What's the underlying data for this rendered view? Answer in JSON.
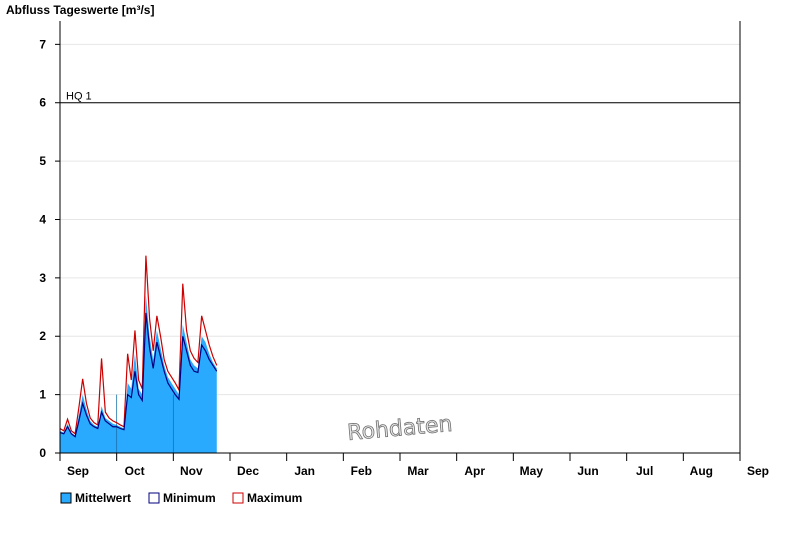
{
  "chart_data": {
    "type": "area",
    "title": "Abfluss Tageswerte [m³/s]",
    "ylim": [
      0,
      7.4
    ],
    "yticks": [
      "0",
      "1",
      "2",
      "3",
      "4",
      "5",
      "6",
      "7"
    ],
    "xticks": [
      "Sep",
      "Oct",
      "Nov",
      "Dec",
      "Jan",
      "Feb",
      "Mar",
      "Apr",
      "May",
      "Jun",
      "Jul",
      "Aug",
      "Sep"
    ],
    "grid": true,
    "reference_line": {
      "label": "HQ 1",
      "value": 6.0
    },
    "watermark": "Rohdaten",
    "legend": [
      "Mittelwert",
      "Minimum",
      "Maximum"
    ],
    "legend_position": "bottom-left",
    "colors": {
      "mean_fill": "#29aaff",
      "minimum": "#00007f",
      "maximum": "#cc0000"
    },
    "series": [
      {
        "name": "Mittelwert",
        "x": [
          "Sep 01",
          "Sep 03",
          "Sep 05",
          "Sep 07",
          "Sep 09",
          "Sep 11",
          "Sep 13",
          "Sep 15",
          "Sep 17",
          "Sep 19",
          "Sep 21",
          "Sep 23",
          "Sep 25",
          "Sep 27",
          "Sep 29",
          "Oct 01",
          "Oct 03",
          "Oct 05",
          "Oct 07",
          "Oct 09",
          "Oct 11",
          "Oct 13",
          "Oct 15",
          "Oct 17",
          "Oct 19",
          "Oct 21",
          "Oct 23",
          "Oct 25",
          "Oct 27",
          "Oct 29",
          "Oct 31",
          "Nov 02",
          "Nov 04",
          "Nov 06",
          "Nov 08",
          "Nov 10",
          "Nov 12",
          "Nov 14",
          "Nov 16",
          "Nov 18",
          "Nov 20",
          "Nov 22",
          "Nov 24",
          "Nov 26",
          "Nov 28",
          "Nov 30",
          "Dec 02",
          "Dec 04"
        ],
        "values": [
          0.38,
          0.35,
          0.5,
          0.35,
          0.3,
          0.65,
          1.0,
          0.75,
          0.55,
          0.48,
          0.45,
          0.8,
          0.6,
          0.55,
          0.5,
          0.48,
          0.45,
          0.42,
          1.2,
          1.1,
          1.7,
          1.1,
          1.0,
          2.7,
          2.0,
          1.6,
          2.1,
          1.8,
          1.5,
          1.3,
          1.2,
          1.1,
          1.0,
          2.2,
          1.9,
          1.6,
          1.5,
          1.45,
          2.0,
          1.9,
          1.7,
          1.55,
          1.45,
          0.0,
          0.0,
          0.0,
          0.0,
          0.0
        ]
      },
      {
        "name": "Minimum",
        "x": [
          "Sep 01",
          "Sep 03",
          "Sep 05",
          "Sep 07",
          "Sep 09",
          "Sep 11",
          "Sep 13",
          "Sep 15",
          "Sep 17",
          "Sep 19",
          "Sep 21",
          "Sep 23",
          "Sep 25",
          "Sep 27",
          "Sep 29",
          "Oct 01",
          "Oct 03",
          "Oct 05",
          "Oct 07",
          "Oct 09",
          "Oct 11",
          "Oct 13",
          "Oct 15",
          "Oct 17",
          "Oct 19",
          "Oct 21",
          "Oct 23",
          "Oct 25",
          "Oct 27",
          "Oct 29",
          "Oct 31",
          "Nov 02",
          "Nov 04",
          "Nov 06",
          "Nov 08",
          "Nov 10",
          "Nov 12",
          "Nov 14",
          "Nov 16",
          "Nov 18",
          "Nov 20",
          "Nov 22",
          "Nov 24"
        ],
        "values": [
          0.35,
          0.33,
          0.45,
          0.33,
          0.28,
          0.55,
          0.85,
          0.65,
          0.5,
          0.45,
          0.42,
          0.7,
          0.55,
          0.5,
          0.45,
          0.45,
          0.42,
          0.4,
          1.0,
          0.95,
          1.4,
          1.0,
          0.9,
          2.4,
          1.8,
          1.45,
          1.9,
          1.65,
          1.4,
          1.2,
          1.1,
          1.0,
          0.92,
          2.0,
          1.75,
          1.5,
          1.4,
          1.38,
          1.85,
          1.75,
          1.6,
          1.5,
          1.4
        ]
      },
      {
        "name": "Maximum",
        "x": [
          "Sep 01",
          "Sep 03",
          "Sep 05",
          "Sep 07",
          "Sep 09",
          "Sep 11",
          "Sep 13",
          "Sep 15",
          "Sep 17",
          "Sep 19",
          "Sep 21",
          "Sep 23",
          "Sep 25",
          "Sep 27",
          "Sep 29",
          "Oct 01",
          "Oct 03",
          "Oct 05",
          "Oct 07",
          "Oct 09",
          "Oct 11",
          "Oct 13",
          "Oct 15",
          "Oct 17",
          "Oct 19",
          "Oct 21",
          "Oct 23",
          "Oct 25",
          "Oct 27",
          "Oct 29",
          "Oct 31",
          "Nov 02",
          "Nov 04",
          "Nov 06",
          "Nov 08",
          "Nov 10",
          "Nov 12",
          "Nov 14",
          "Nov 16",
          "Nov 18",
          "Nov 20",
          "Nov 22",
          "Nov 24"
        ],
        "values": [
          0.42,
          0.38,
          0.58,
          0.38,
          0.33,
          0.78,
          1.27,
          0.85,
          0.6,
          0.52,
          0.48,
          1.62,
          0.7,
          0.6,
          0.55,
          0.52,
          0.48,
          0.45,
          1.7,
          1.25,
          2.1,
          1.25,
          1.1,
          3.38,
          2.3,
          1.75,
          2.35,
          2.0,
          1.6,
          1.4,
          1.3,
          1.2,
          1.08,
          2.9,
          2.1,
          1.75,
          1.62,
          1.55,
          2.35,
          2.1,
          1.85,
          1.65,
          1.5
        ]
      }
    ]
  }
}
